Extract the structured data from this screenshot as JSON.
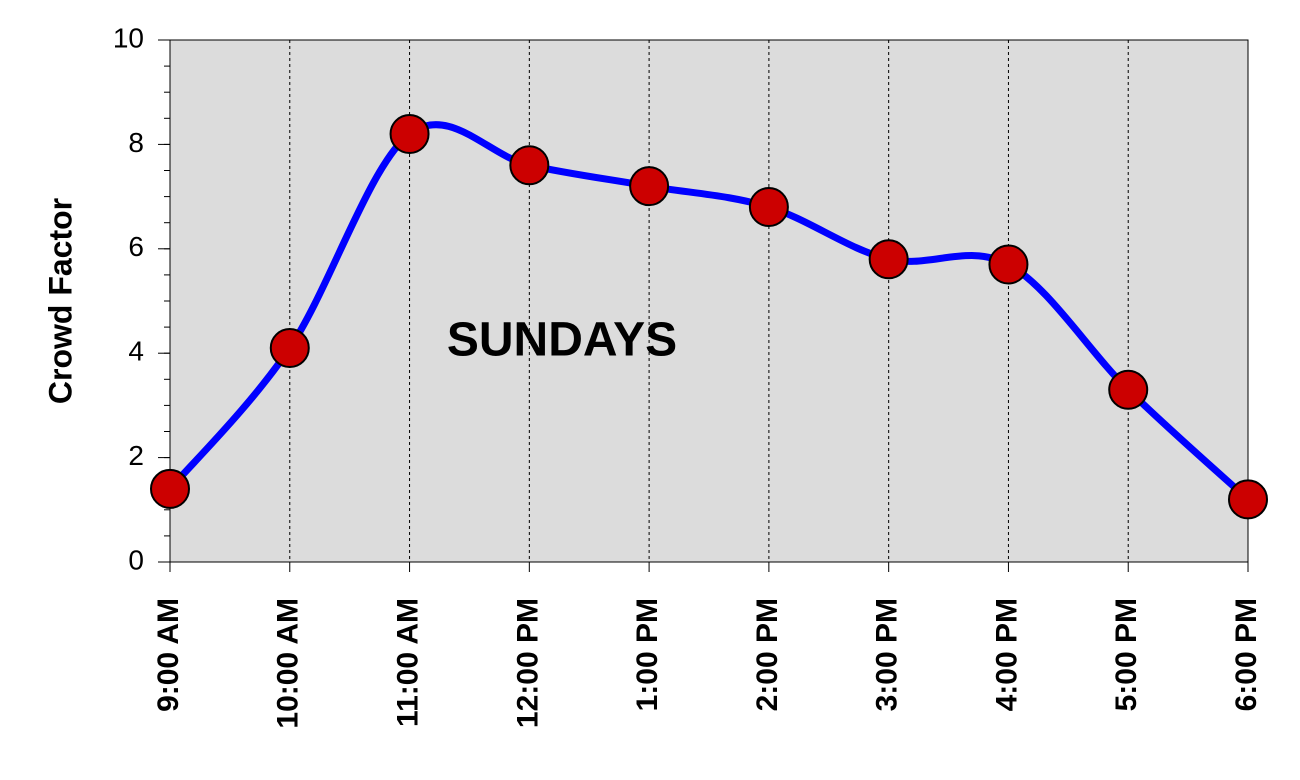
{
  "chart_data": {
    "type": "line",
    "ylabel": "Crowd Factor",
    "annotation": "SUNDAYS",
    "categories": [
      "9:00 AM",
      "10:00 AM",
      "11:00 AM",
      "12:00 PM",
      "1:00 PM",
      "2:00 PM",
      "3:00 PM",
      "4:00 PM",
      "5:00 PM",
      "6:00 PM"
    ],
    "series": [
      {
        "name": "Crowd Factor",
        "color": "#0000ff",
        "marker_color": "#cc0000",
        "values": [
          1.4,
          4.1,
          8.2,
          7.6,
          7.2,
          6.8,
          5.8,
          5.7,
          3.3,
          1.2
        ]
      }
    ],
    "ylim": [
      0,
      10
    ],
    "yticks": [
      0,
      2,
      4,
      6,
      8,
      10
    ],
    "x_grid": true,
    "smooth": true
  }
}
